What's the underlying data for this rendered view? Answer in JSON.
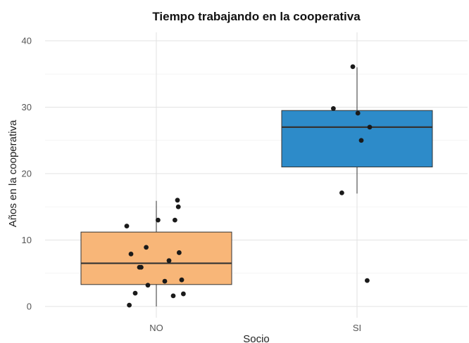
{
  "chart_data": {
    "type": "boxplot",
    "title": "Tiempo trabajando en la cooperativa",
    "xlabel": "Socio",
    "ylabel": "Años en la cooperativa",
    "categories": [
      "NO",
      "SI"
    ],
    "ylim": [
      -1,
      42
    ],
    "yticks": [
      "0",
      "10",
      "20",
      "30",
      "40"
    ],
    "grid": true,
    "colors": {
      "NO": "#F8B678",
      "SI": "#2D8BC9"
    },
    "boxes": [
      {
        "category": "NO",
        "whisker_low": 0,
        "q1": 3.3,
        "median": 6.5,
        "q3": 11.2,
        "whisker_high": 15.9
      },
      {
        "category": "SI",
        "whisker_low": 17,
        "q1": 21,
        "median": 27,
        "q3": 29.5,
        "whisker_high": 36
      }
    ],
    "points": [
      {
        "category": "NO",
        "jitter": -0.35,
        "y": 12.1
      },
      {
        "category": "NO",
        "jitter": -0.3,
        "y": 7.9
      },
      {
        "category": "NO",
        "jitter": -0.25,
        "y": 2.0
      },
      {
        "category": "NO",
        "jitter": -0.32,
        "y": 0.2
      },
      {
        "category": "NO",
        "jitter": -0.2,
        "y": 5.9
      },
      {
        "category": "NO",
        "jitter": -0.18,
        "y": 5.9
      },
      {
        "category": "NO",
        "jitter": -0.12,
        "y": 8.9
      },
      {
        "category": "NO",
        "jitter": -0.1,
        "y": 3.2
      },
      {
        "category": "NO",
        "jitter": 0.02,
        "y": 13.0
      },
      {
        "category": "NO",
        "jitter": 0.1,
        "y": 3.8
      },
      {
        "category": "NO",
        "jitter": 0.15,
        "y": 6.9
      },
      {
        "category": "NO",
        "jitter": 0.2,
        "y": 1.6
      },
      {
        "category": "NO",
        "jitter": 0.22,
        "y": 13.0
      },
      {
        "category": "NO",
        "jitter": 0.25,
        "y": 16.0
      },
      {
        "category": "NO",
        "jitter": 0.26,
        "y": 15.0
      },
      {
        "category": "NO",
        "jitter": 0.27,
        "y": 8.1
      },
      {
        "category": "NO",
        "jitter": 0.3,
        "y": 4.0
      },
      {
        "category": "NO",
        "jitter": 0.32,
        "y": 1.9
      },
      {
        "category": "SI",
        "jitter": -0.28,
        "y": 29.8
      },
      {
        "category": "SI",
        "jitter": -0.18,
        "y": 17.1
      },
      {
        "category": "SI",
        "jitter": -0.05,
        "y": 36.1
      },
      {
        "category": "SI",
        "jitter": 0.01,
        "y": 29.1
      },
      {
        "category": "SI",
        "jitter": 0.05,
        "y": 25.0
      },
      {
        "category": "SI",
        "jitter": 0.15,
        "y": 27.0
      },
      {
        "category": "SI",
        "jitter": 0.12,
        "y": 3.9
      }
    ]
  }
}
